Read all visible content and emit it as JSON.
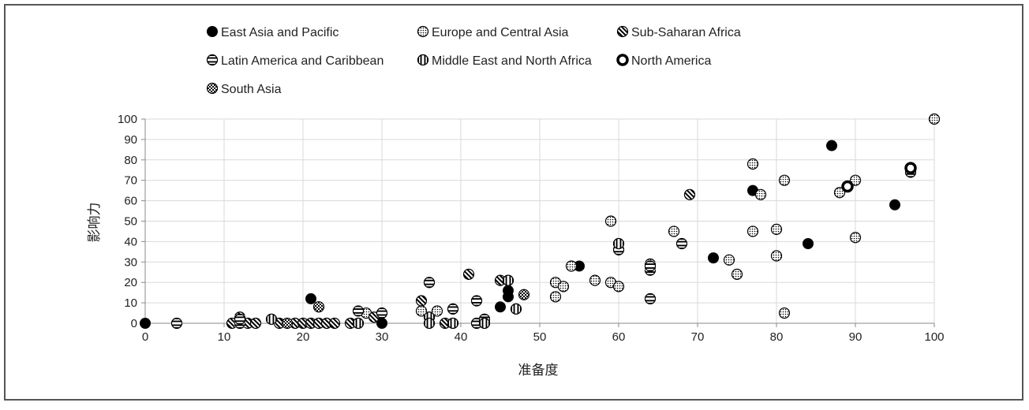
{
  "chart_data": {
    "type": "scatter",
    "xlabel": "准备度",
    "ylabel": "影响力",
    "xlim": [
      0,
      100
    ],
    "ylim": [
      0,
      100
    ],
    "xticks": [
      0,
      10,
      20,
      30,
      40,
      50,
      60,
      70,
      80,
      90,
      100
    ],
    "yticks": [
      0,
      10,
      20,
      30,
      40,
      50,
      60,
      70,
      80,
      90,
      100
    ],
    "grid": true,
    "legend": "top",
    "series": [
      {
        "name": "East Asia and Pacific",
        "marker": "solid",
        "points": [
          [
            0,
            0
          ],
          [
            21,
            12
          ],
          [
            30,
            0
          ],
          [
            45,
            8
          ],
          [
            46,
            13
          ],
          [
            46,
            16
          ],
          [
            55,
            28
          ],
          [
            72,
            32
          ],
          [
            77,
            65
          ],
          [
            84,
            39
          ],
          [
            87,
            87
          ],
          [
            95,
            58
          ]
        ]
      },
      {
        "name": "Europe and Central Asia",
        "marker": "dots",
        "points": [
          [
            28,
            5
          ],
          [
            35,
            6
          ],
          [
            37,
            6
          ],
          [
            52,
            20
          ],
          [
            52,
            13
          ],
          [
            53,
            18
          ],
          [
            54,
            28
          ],
          [
            57,
            21
          ],
          [
            59,
            50
          ],
          [
            59,
            20
          ],
          [
            60,
            18
          ],
          [
            64,
            29
          ],
          [
            67,
            45
          ],
          [
            74,
            31
          ],
          [
            75,
            24
          ],
          [
            77,
            78
          ],
          [
            77,
            45
          ],
          [
            78,
            63
          ],
          [
            80,
            46
          ],
          [
            80,
            33
          ],
          [
            81,
            70
          ],
          [
            81,
            5
          ],
          [
            88,
            64
          ],
          [
            90,
            70
          ],
          [
            90,
            42
          ],
          [
            100,
            100
          ]
        ]
      },
      {
        "name": "Sub-Saharan Africa",
        "marker": "diagonal",
        "points": [
          [
            11,
            0
          ],
          [
            12,
            3
          ],
          [
            13,
            0
          ],
          [
            14,
            0
          ],
          [
            17,
            0
          ],
          [
            19,
            0
          ],
          [
            20,
            0
          ],
          [
            21,
            0
          ],
          [
            22,
            0
          ],
          [
            23,
            0
          ],
          [
            24,
            0
          ],
          [
            26,
            0
          ],
          [
            29,
            3
          ],
          [
            35,
            11
          ],
          [
            38,
            0
          ],
          [
            41,
            24
          ],
          [
            45,
            21
          ],
          [
            69,
            63
          ]
        ]
      },
      {
        "name": "Latin America and Caribbean",
        "marker": "horizontal",
        "points": [
          [
            4,
            0
          ],
          [
            12,
            0
          ],
          [
            12,
            2
          ],
          [
            27,
            6
          ],
          [
            30,
            5
          ],
          [
            36,
            20
          ],
          [
            39,
            7
          ],
          [
            42,
            11
          ],
          [
            42,
            0
          ],
          [
            43,
            2
          ],
          [
            60,
            36
          ],
          [
            64,
            12
          ],
          [
            64,
            26
          ],
          [
            64,
            28
          ],
          [
            68,
            39
          ],
          [
            97,
            74
          ]
        ]
      },
      {
        "name": "Middle East and North Africa",
        "marker": "vertical",
        "points": [
          [
            16,
            2
          ],
          [
            27,
            0
          ],
          [
            36,
            3
          ],
          [
            36,
            0
          ],
          [
            39,
            0
          ],
          [
            43,
            0
          ],
          [
            46,
            21
          ],
          [
            47,
            7
          ],
          [
            60,
            39
          ]
        ]
      },
      {
        "name": "North America",
        "marker": "ring",
        "points": [
          [
            89,
            67
          ],
          [
            97,
            76
          ]
        ]
      },
      {
        "name": "South Asia",
        "marker": "checker",
        "points": [
          [
            18,
            0
          ],
          [
            22,
            8
          ],
          [
            48,
            14
          ]
        ]
      }
    ]
  }
}
